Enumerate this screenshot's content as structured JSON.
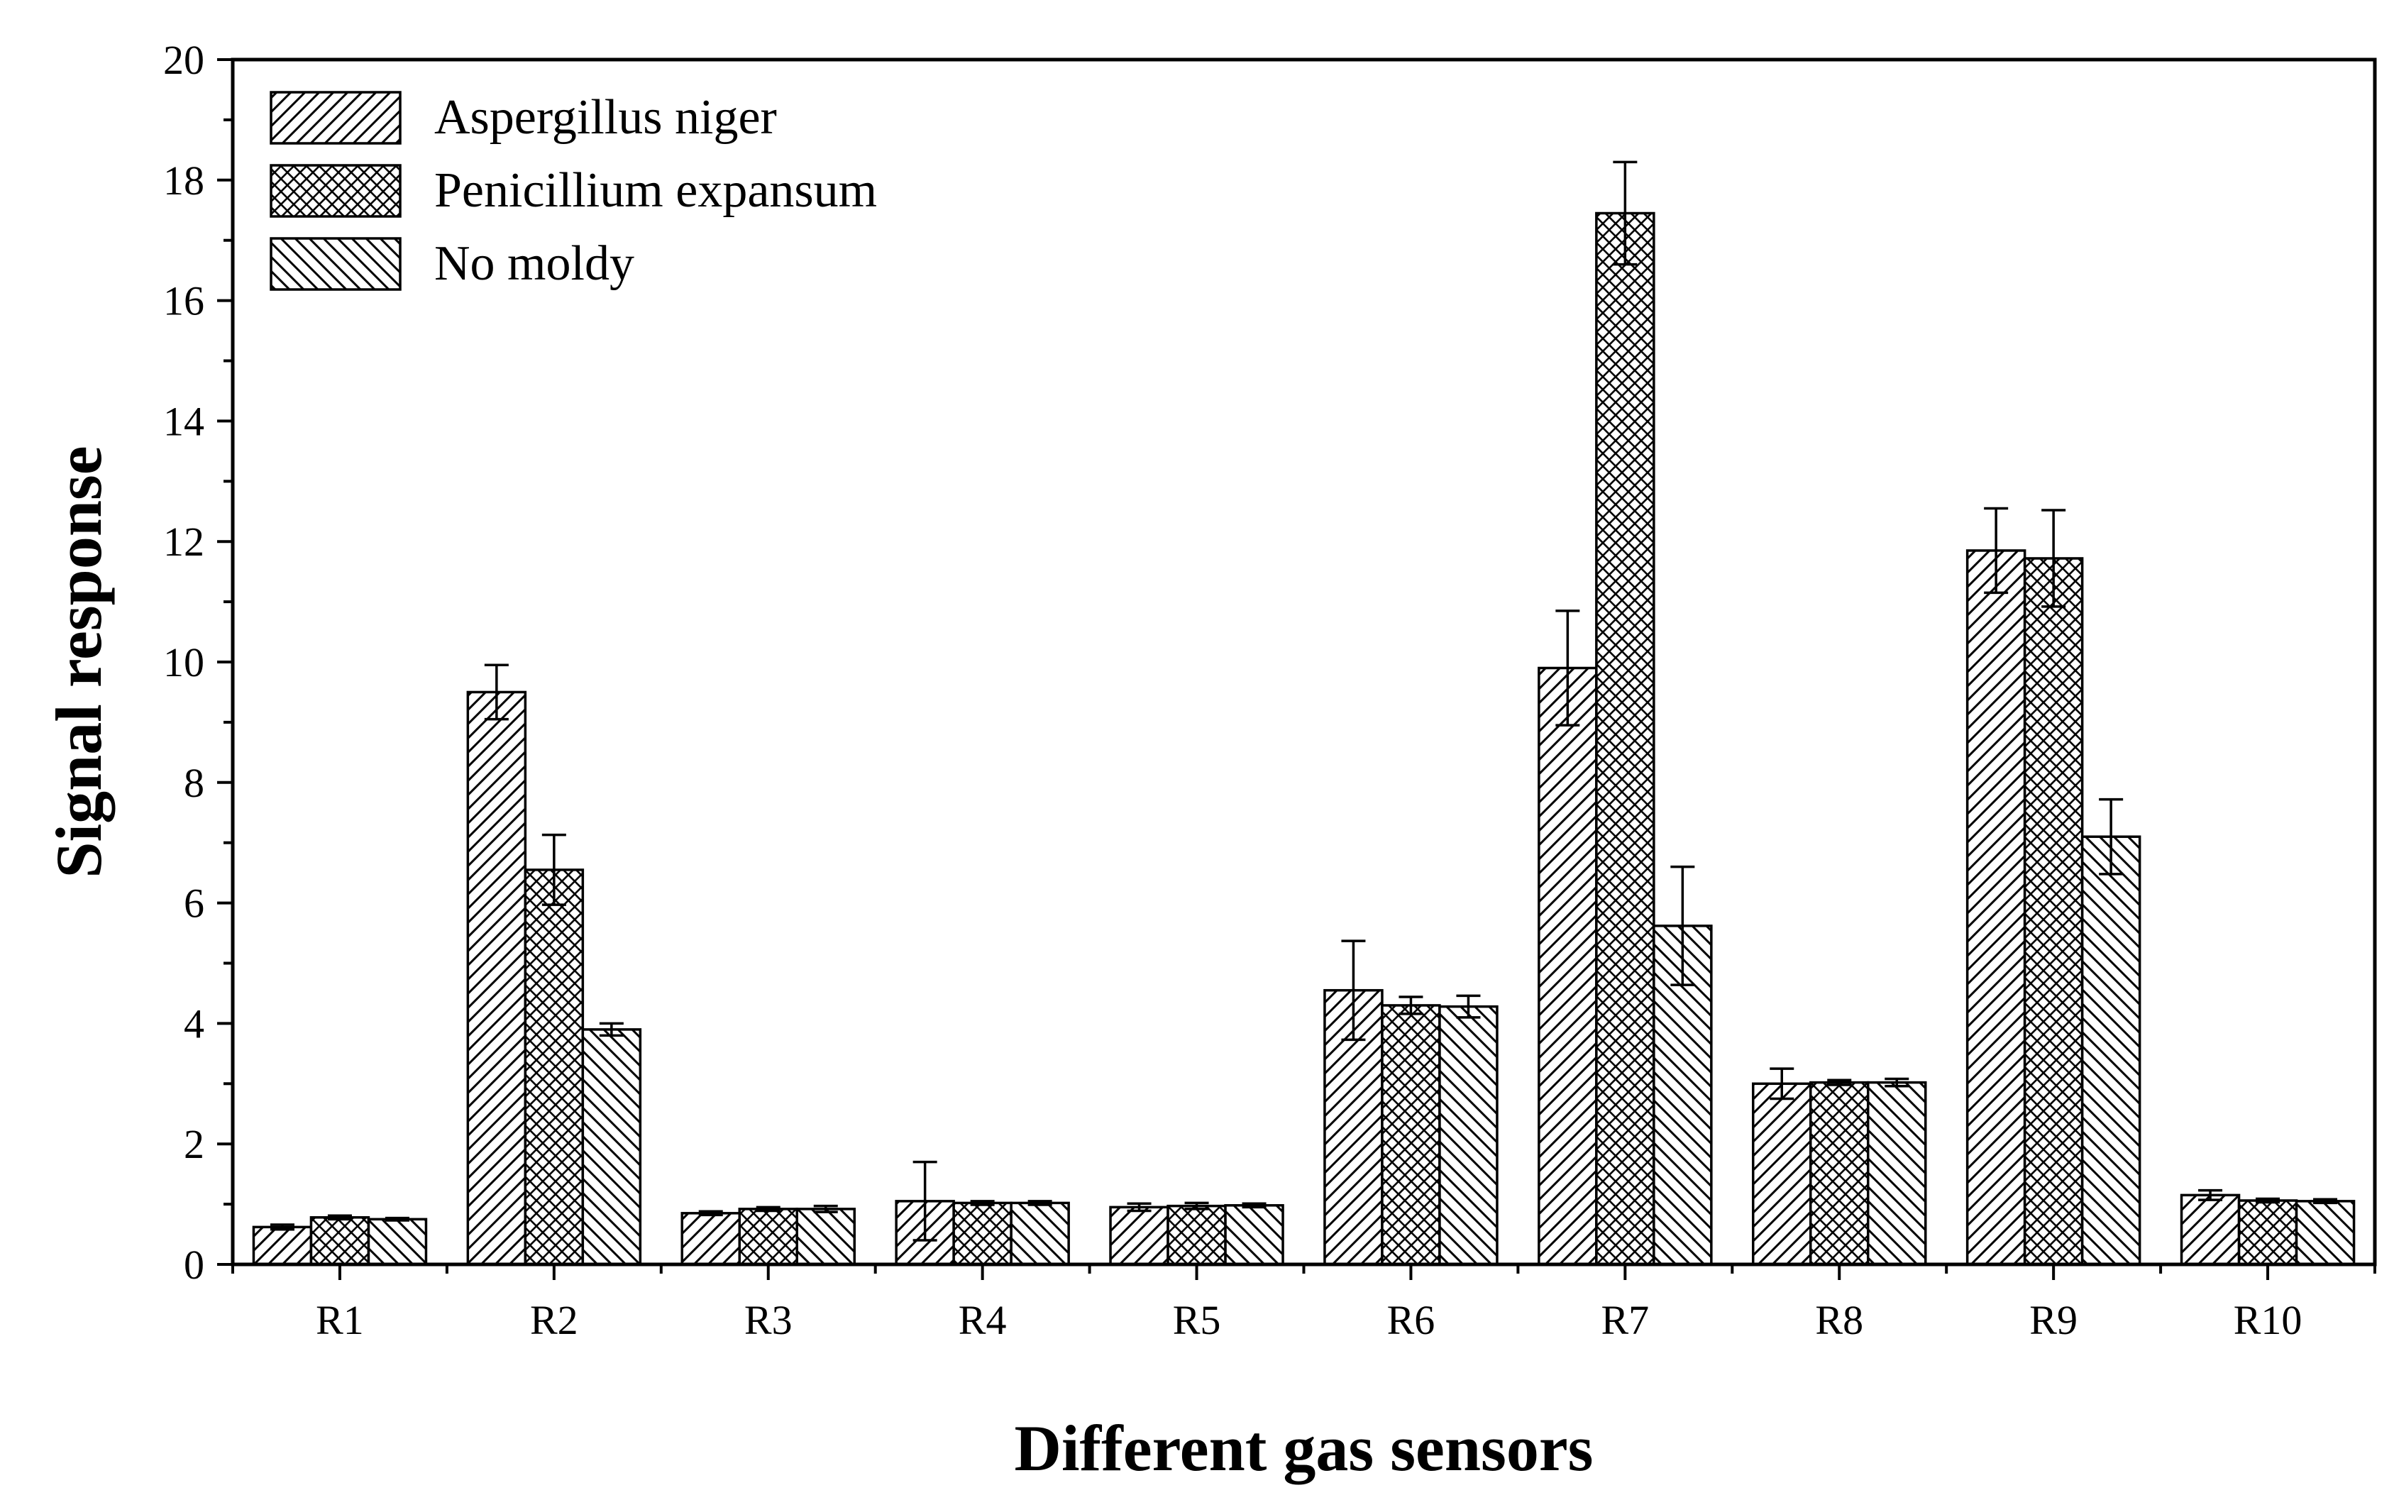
{
  "chart_data": {
    "type": "bar",
    "title": "",
    "xlabel": "Different gas sensors",
    "ylabel": "Signal response",
    "categories": [
      "R1",
      "R2",
      "R3",
      "R4",
      "R5",
      "R6",
      "R7",
      "R8",
      "R9",
      "R10"
    ],
    "ylim": [
      0,
      20
    ],
    "yticks": [
      0,
      2,
      4,
      6,
      8,
      10,
      12,
      14,
      16,
      18,
      20
    ],
    "yticks_labels": [
      "0",
      "2",
      "4",
      "6",
      "8",
      "10",
      "12",
      "14",
      "16",
      "18",
      "20"
    ],
    "grid": false,
    "legend_position": "top-left",
    "series": [
      {
        "name": "Aspergillus niger",
        "pattern": "forward-diagonal-hatch",
        "values": [
          0.62,
          9.5,
          0.85,
          1.05,
          0.95,
          4.55,
          9.9,
          3.0,
          11.85,
          1.15
        ],
        "errors": [
          0.04,
          0.45,
          0.03,
          0.65,
          0.06,
          0.82,
          0.95,
          0.25,
          0.7,
          0.08
        ]
      },
      {
        "name": "Penicillium expansum",
        "pattern": "crosshatch",
        "values": [
          0.78,
          6.55,
          0.92,
          1.02,
          0.97,
          4.3,
          17.45,
          3.02,
          11.72,
          1.06
        ],
        "errors": [
          0.03,
          0.58,
          0.03,
          0.03,
          0.05,
          0.14,
          0.85,
          0.04,
          0.8,
          0.03
        ]
      },
      {
        "name": "No moldy",
        "pattern": "back-diagonal-hatch",
        "values": [
          0.75,
          3.9,
          0.92,
          1.02,
          0.98,
          4.28,
          5.62,
          3.02,
          7.1,
          1.05
        ],
        "errors": [
          0.02,
          0.1,
          0.05,
          0.03,
          0.03,
          0.18,
          0.98,
          0.06,
          0.62,
          0.03
        ]
      }
    ]
  }
}
